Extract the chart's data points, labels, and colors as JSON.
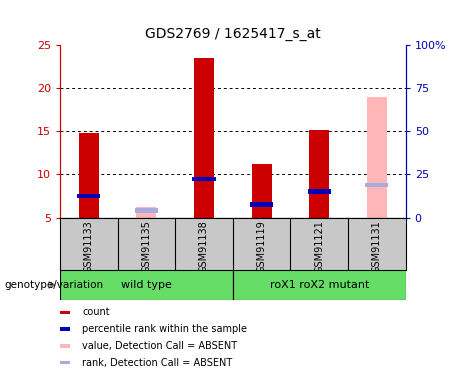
{
  "title": "GDS2769 / 1625417_s_at",
  "samples": [
    "GSM91133",
    "GSM91135",
    "GSM91138",
    "GSM91119",
    "GSM91121",
    "GSM91131"
  ],
  "red_bars": [
    14.8,
    0,
    23.5,
    11.2,
    15.2,
    0
  ],
  "pink_bars": [
    0,
    6.2,
    0,
    0,
    0,
    19.0
  ],
  "blue_markers": [
    7.5,
    0,
    9.5,
    6.5,
    8.0,
    0
  ],
  "light_blue_markers": [
    0,
    5.8,
    0,
    0,
    0,
    8.8
  ],
  "ylim_left": [
    5,
    25
  ],
  "yticks_left": [
    5,
    10,
    15,
    20,
    25
  ],
  "ytick_labels_right": [
    "0",
    "25",
    "50",
    "75",
    "100%"
  ],
  "bar_width": 0.35,
  "bar_bottom": 5,
  "left_axis_color": "#CC0000",
  "right_axis_color": "#0000BB",
  "bg_color": "#FFFFFF",
  "sample_bg": "#C8C8C8",
  "group_color": "#66DD66",
  "group_label": "genotype/variation",
  "legend_items": [
    {
      "label": "count",
      "color": "#CC0000"
    },
    {
      "label": "percentile rank within the sample",
      "color": "#0000BB"
    },
    {
      "label": "value, Detection Call = ABSENT",
      "color": "#FFB6B6"
    },
    {
      "label": "rank, Detection Call = ABSENT",
      "color": "#AAAADD"
    }
  ]
}
